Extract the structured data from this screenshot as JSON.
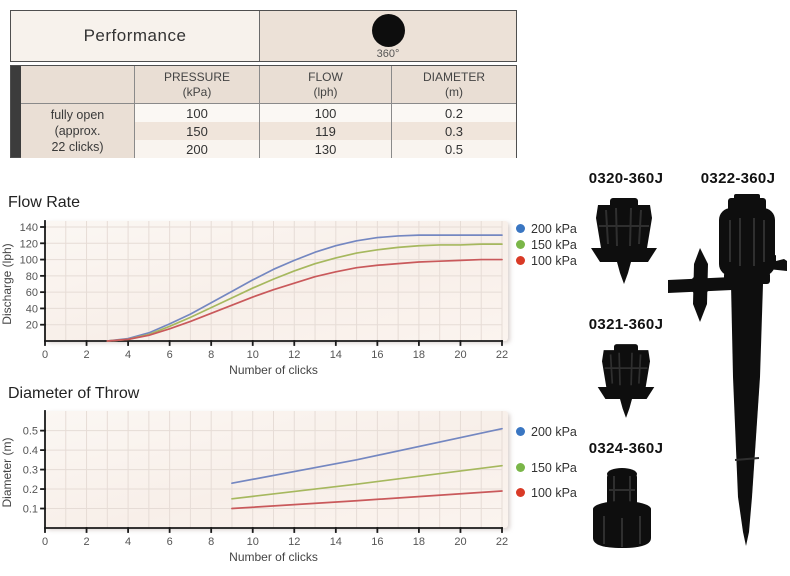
{
  "table": {
    "title": "Performance",
    "pattern": {
      "icon": "filled-circle-360-icon",
      "label": "360°"
    },
    "headers": [
      {
        "title": "PRESSURE",
        "unit": "(kPa)"
      },
      {
        "title": "FLOW",
        "unit": "(lph)"
      },
      {
        "title": "DIAMETER",
        "unit": "(m)"
      }
    ],
    "row_label": [
      "fully open",
      "(approx.",
      "22 clicks)"
    ],
    "rows": [
      {
        "pressure": "100",
        "flow": "100",
        "diameter": "0.2"
      },
      {
        "pressure": "150",
        "flow": "119",
        "diameter": "0.3"
      },
      {
        "pressure": "200",
        "flow": "130",
        "diameter": "0.5"
      }
    ]
  },
  "chart_data": [
    {
      "type": "line",
      "title": "Flow Rate",
      "xlabel": "Number of clicks",
      "ylabel": "Discharge (lph)",
      "xlim": [
        0,
        22
      ],
      "xtick_step": 2,
      "grid_x_step": 1,
      "ylim": [
        0,
        140
      ],
      "ytick_step": 20,
      "y_decimals": 0,
      "grid": true,
      "legend_position": "right-top",
      "series": [
        {
          "name": "200 kPa",
          "color": "#7487c1",
          "dot_color": "#3a76c2",
          "x": [
            3,
            4,
            5,
            6,
            7,
            8,
            9,
            10,
            11,
            12,
            13,
            14,
            15,
            16,
            17,
            18,
            19,
            20,
            21,
            22
          ],
          "y": [
            0,
            3,
            10,
            21,
            33,
            47,
            61,
            75,
            88,
            99,
            109,
            117,
            123,
            127,
            129,
            130,
            130,
            130,
            130,
            130
          ]
        },
        {
          "name": "150 kPa",
          "color": "#a6b85e",
          "dot_color": "#7ab648",
          "x": [
            3,
            4,
            5,
            6,
            7,
            8,
            9,
            10,
            11,
            12,
            13,
            14,
            15,
            16,
            17,
            18,
            19,
            20,
            21,
            22
          ],
          "y": [
            0,
            2,
            8,
            18,
            29,
            41,
            53,
            65,
            76,
            86,
            95,
            102,
            108,
            112,
            115,
            117,
            118,
            118,
            119,
            119
          ]
        },
        {
          "name": "100 kPa",
          "color": "#c9595b",
          "dot_color": "#d93a26",
          "x": [
            3,
            4,
            5,
            6,
            7,
            8,
            9,
            10,
            11,
            12,
            13,
            14,
            15,
            16,
            17,
            18,
            19,
            20,
            21,
            22
          ],
          "y": [
            0,
            2,
            7,
            15,
            24,
            34,
            44,
            54,
            63,
            71,
            79,
            85,
            90,
            93,
            95,
            97,
            98,
            99,
            100,
            100
          ]
        }
      ]
    },
    {
      "type": "line",
      "title": "Diameter of Throw",
      "xlabel": "Number of clicks",
      "ylabel": "Diameter (m)",
      "xlim": [
        0,
        22
      ],
      "xtick_step": 2,
      "grid_x_step": 1,
      "ylim": [
        0,
        0.57
      ],
      "ytick_step": 0.1,
      "y_decimals": 1,
      "grid": true,
      "legend_position": "right-spread",
      "series": [
        {
          "name": "200 kPa",
          "color": "#7487c1",
          "dot_color": "#3a76c2",
          "x": [
            9,
            15,
            22
          ],
          "y": [
            0.23,
            0.35,
            0.51
          ]
        },
        {
          "name": "150 kPa",
          "color": "#a6b85e",
          "dot_color": "#7ab648",
          "x": [
            9,
            15,
            22
          ],
          "y": [
            0.15,
            0.225,
            0.32
          ]
        },
        {
          "name": "100 kPa",
          "color": "#c9595b",
          "dot_color": "#d93a26",
          "x": [
            9,
            15,
            22
          ],
          "y": [
            0.1,
            0.14,
            0.19
          ]
        }
      ]
    }
  ],
  "products": [
    {
      "code": "0320-360J"
    },
    {
      "code": "0322-360J"
    },
    {
      "code": "0321-360J"
    },
    {
      "code": "0324-360J"
    }
  ],
  "colors": {
    "accent_stripe": "#3c3c3c",
    "table_beige": "#eadfd5",
    "product_ink": "#0e0e0e"
  }
}
